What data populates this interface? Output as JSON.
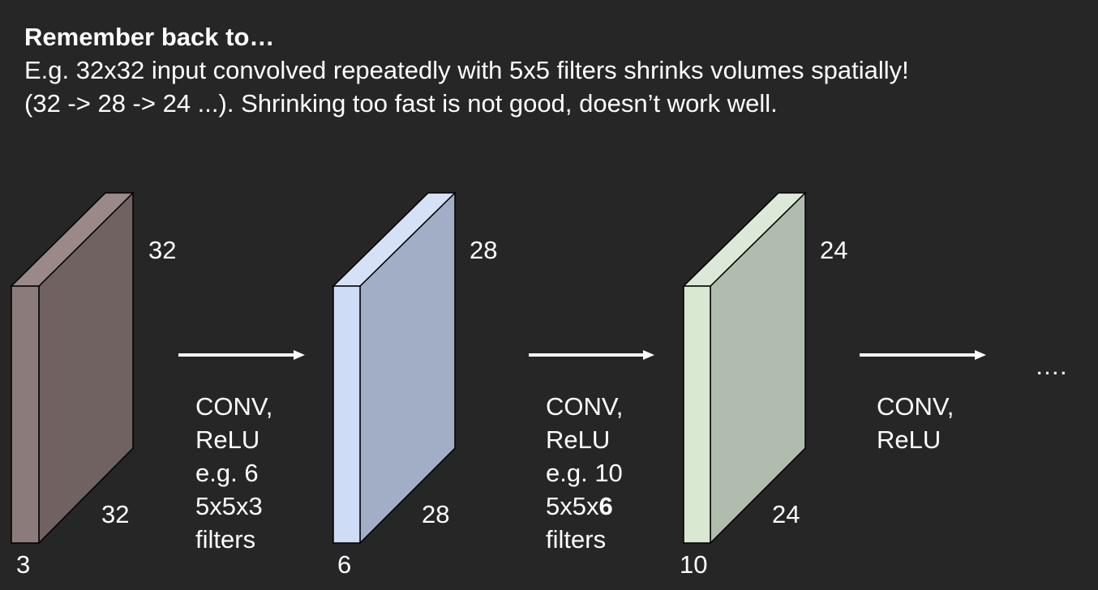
{
  "header": {
    "title": "Remember back to…",
    "line1": "E.g. 32x32 input convolved repeatedly with 5x5 filters shrinks volumes spatially!",
    "line2": "(32 -> 28 -> 24 ...). Shrinking too fast is not good, doesn’t work well."
  },
  "volumes": [
    {
      "height_label": "32",
      "width_label": "32",
      "depth_label": "3",
      "colors": {
        "front": "#8c7b7b",
        "side": "#6f6261",
        "top": "#9a8988"
      }
    },
    {
      "height_label": "28",
      "width_label": "28",
      "depth_label": "6",
      "colors": {
        "front": "#cfdcf6",
        "side": "#a2aec6",
        "top": "#d6e1f8"
      }
    },
    {
      "height_label": "24",
      "width_label": "24",
      "depth_label": "10",
      "colors": {
        "front": "#d8e8d1",
        "side": "#b0bcad",
        "top": "#dde9d8"
      }
    }
  ],
  "operations": [
    {
      "lines": [
        "CONV,",
        "ReLU",
        "e.g. 6",
        "5x5x3",
        "filters"
      ]
    },
    {
      "lines": [
        "CONV,",
        "ReLU",
        "e.g. 10",
        "5x5x",
        "filters"
      ],
      "bold_suffix": "6"
    },
    {
      "lines": [
        "CONV,",
        "ReLU"
      ]
    }
  ],
  "ellipsis": "….",
  "arrow_color": "#ffffff"
}
